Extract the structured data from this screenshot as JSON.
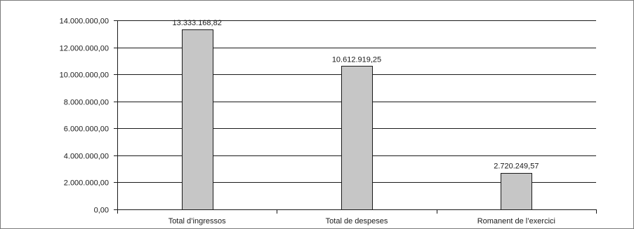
{
  "chart_data": {
    "type": "bar",
    "categories": [
      "Total d’ingressos",
      "Total de despeses",
      "Romanent de l’exercici"
    ],
    "values": [
      13333168.82,
      10612919.25,
      2720249.57
    ],
    "data_labels": [
      "13.333.168,82",
      "10.612.919,25",
      "2.720.249,57"
    ],
    "title": "",
    "xlabel": "",
    "ylabel": "",
    "ylim": [
      0,
      14000000
    ],
    "y_ticks": [
      0,
      2000000,
      4000000,
      6000000,
      8000000,
      10000000,
      12000000,
      14000000
    ],
    "y_tick_labels": [
      "0,00",
      "2.000.000,00",
      "4.000.000,00",
      "6.000.000,00",
      "8.000.000,00",
      "10.000.000,00",
      "12.000.000,00",
      "14.000.000,00"
    ],
    "grid": true,
    "legend": "none",
    "colors": {
      "bar_fill": "#c6c6c6",
      "bar_stroke": "#1a1a1a",
      "grid": "#1a1a1a",
      "axis": "#1a1a1a",
      "frame": "#7a7a7a"
    }
  }
}
